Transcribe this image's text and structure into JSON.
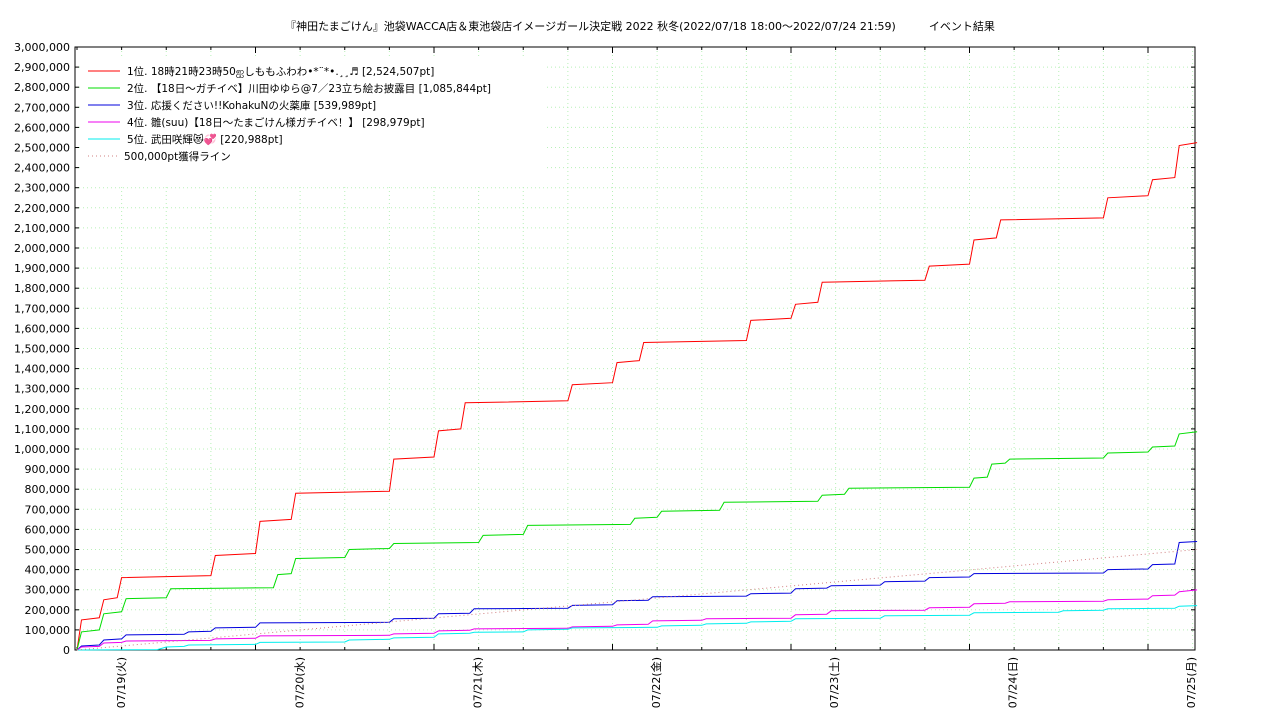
{
  "chart_data": {
    "type": "line",
    "title": "『神田たまごけん』池袋WACCA店＆東池袋店イメージガール決定戦 2022 秋冬(2022/07/18 18:00～2022/07/24 21:59)　　　イベント結果",
    "xlabel": "",
    "ylabel": "",
    "x_range": [
      "07/18 18:00",
      "07/25 00:00"
    ],
    "ylim": [
      0,
      3000000
    ],
    "y_ticks": [
      "0",
      "100,000",
      "200,000",
      "300,000",
      "400,000",
      "500,000",
      "600,000",
      "700,000",
      "800,000",
      "900,000",
      "1,000,000",
      "1,100,000",
      "1,200,000",
      "1,300,000",
      "1,400,000",
      "1,500,000",
      "1,600,000",
      "1,700,000",
      "1,800,000",
      "1,900,000",
      "2,000,000",
      "2,100,000",
      "2,200,000",
      "2,300,000",
      "2,400,000",
      "2,500,000",
      "2,600,000",
      "2,700,000",
      "2,800,000",
      "2,900,000",
      "3,000,000"
    ],
    "x_ticks": [
      "07/19(火)",
      "07/20(水)",
      "07/21(木)",
      "07/22(金)",
      "07/23(土)",
      "07/24(日)",
      "07/25(月)"
    ],
    "grid": true,
    "legend_position": "top-left",
    "series": [
      {
        "name": "1位. 18時21時23時50ஐしももふわわ•*¨*•.¸¸♬ [2,524,507pt]",
        "color": "#ff0000",
        "points": [
          [
            0,
            0
          ],
          [
            0.05,
            150000
          ],
          [
            0.25,
            160000
          ],
          [
            0.3,
            250000
          ],
          [
            0.45,
            260000
          ],
          [
            0.5,
            360000
          ],
          [
            1.5,
            370000
          ],
          [
            1.55,
            470000
          ],
          [
            2.0,
            480000
          ],
          [
            2.05,
            640000
          ],
          [
            2.4,
            650000
          ],
          [
            2.45,
            780000
          ],
          [
            3.5,
            790000
          ],
          [
            3.55,
            950000
          ],
          [
            4.0,
            960000
          ],
          [
            4.05,
            1090000
          ],
          [
            4.3,
            1100000
          ],
          [
            4.35,
            1230000
          ],
          [
            5.5,
            1240000
          ],
          [
            5.55,
            1320000
          ],
          [
            6.0,
            1330000
          ],
          [
            6.05,
            1430000
          ],
          [
            6.3,
            1440000
          ],
          [
            6.35,
            1530000
          ],
          [
            7.5,
            1540000
          ],
          [
            7.55,
            1640000
          ],
          [
            8.0,
            1650000
          ],
          [
            8.05,
            1720000
          ],
          [
            8.3,
            1730000
          ],
          [
            8.35,
            1830000
          ],
          [
            9.5,
            1840000
          ],
          [
            9.55,
            1910000
          ],
          [
            10.0,
            1920000
          ],
          [
            10.05,
            2040000
          ],
          [
            10.3,
            2050000
          ],
          [
            10.35,
            2140000
          ],
          [
            11.5,
            2150000
          ],
          [
            11.55,
            2250000
          ],
          [
            12.0,
            2260000
          ],
          [
            12.05,
            2340000
          ],
          [
            12.3,
            2350000
          ],
          [
            12.35,
            2510000
          ],
          [
            12.55,
            2524507
          ]
        ]
      },
      {
        "name": "2位. 【18日〜ガチイベ】川田ゆゆら@7／23立ち絵お披露目 [1,085,844pt]",
        "color": "#00dd00",
        "points": [
          [
            0,
            0
          ],
          [
            0.05,
            90000
          ],
          [
            0.25,
            100000
          ],
          [
            0.3,
            180000
          ],
          [
            0.5,
            190000
          ],
          [
            0.55,
            255000
          ],
          [
            1.0,
            260000
          ],
          [
            1.05,
            305000
          ],
          [
            2.2,
            310000
          ],
          [
            2.25,
            375000
          ],
          [
            2.4,
            380000
          ],
          [
            2.45,
            455000
          ],
          [
            3.0,
            460000
          ],
          [
            3.05,
            500000
          ],
          [
            3.5,
            505000
          ],
          [
            3.55,
            530000
          ],
          [
            4.5,
            535000
          ],
          [
            4.55,
            570000
          ],
          [
            5.0,
            575000
          ],
          [
            5.05,
            620000
          ],
          [
            6.2,
            625000
          ],
          [
            6.25,
            655000
          ],
          [
            6.5,
            660000
          ],
          [
            6.55,
            690000
          ],
          [
            7.2,
            695000
          ],
          [
            7.25,
            735000
          ],
          [
            8.3,
            740000
          ],
          [
            8.35,
            770000
          ],
          [
            8.6,
            775000
          ],
          [
            8.65,
            805000
          ],
          [
            10.0,
            810000
          ],
          [
            10.05,
            855000
          ],
          [
            10.2,
            860000
          ],
          [
            10.25,
            925000
          ],
          [
            10.4,
            930000
          ],
          [
            10.45,
            950000
          ],
          [
            11.5,
            955000
          ],
          [
            11.55,
            980000
          ],
          [
            12.0,
            985000
          ],
          [
            12.05,
            1010000
          ],
          [
            12.3,
            1015000
          ],
          [
            12.35,
            1075000
          ],
          [
            12.55,
            1085844
          ]
        ]
      },
      {
        "name": "3位. 応援ください!!KohakuNの火薬庫 [539,989pt]",
        "color": "#0000dd",
        "points": [
          [
            0,
            0
          ],
          [
            0.05,
            20000
          ],
          [
            0.25,
            25000
          ],
          [
            0.3,
            50000
          ],
          [
            0.5,
            55000
          ],
          [
            0.55,
            75000
          ],
          [
            1.2,
            78000
          ],
          [
            1.25,
            90000
          ],
          [
            1.5,
            93000
          ],
          [
            1.55,
            110000
          ],
          [
            2.0,
            113000
          ],
          [
            2.05,
            135000
          ],
          [
            3.5,
            138000
          ],
          [
            3.55,
            155000
          ],
          [
            4.0,
            158000
          ],
          [
            4.05,
            180000
          ],
          [
            4.4,
            183000
          ],
          [
            4.45,
            205000
          ],
          [
            5.5,
            208000
          ],
          [
            5.55,
            222000
          ],
          [
            6.0,
            225000
          ],
          [
            6.05,
            245000
          ],
          [
            6.4,
            248000
          ],
          [
            6.45,
            265000
          ],
          [
            7.5,
            268000
          ],
          [
            7.55,
            280000
          ],
          [
            8.0,
            283000
          ],
          [
            8.05,
            305000
          ],
          [
            8.4,
            308000
          ],
          [
            8.45,
            320000
          ],
          [
            9.0,
            323000
          ],
          [
            9.05,
            340000
          ],
          [
            9.5,
            343000
          ],
          [
            9.55,
            360000
          ],
          [
            10.0,
            363000
          ],
          [
            10.05,
            380000
          ],
          [
            11.5,
            383000
          ],
          [
            11.55,
            400000
          ],
          [
            12.0,
            403000
          ],
          [
            12.05,
            425000
          ],
          [
            12.3,
            428000
          ],
          [
            12.35,
            535000
          ],
          [
            12.55,
            539989
          ]
        ]
      },
      {
        "name": "4位. 雛(suu)【18日〜たまごけん様ガチイベ！】 [298,979pt]",
        "color": "#ee00ee",
        "points": [
          [
            0,
            0
          ],
          [
            0.05,
            15000
          ],
          [
            0.25,
            18000
          ],
          [
            0.3,
            35000
          ],
          [
            0.5,
            38000
          ],
          [
            0.55,
            45000
          ],
          [
            1.5,
            48000
          ],
          [
            1.55,
            55000
          ],
          [
            2.0,
            58000
          ],
          [
            2.05,
            70000
          ],
          [
            3.5,
            73000
          ],
          [
            3.55,
            80000
          ],
          [
            4.0,
            83000
          ],
          [
            4.05,
            95000
          ],
          [
            4.4,
            98000
          ],
          [
            4.45,
            105000
          ],
          [
            5.5,
            108000
          ],
          [
            5.55,
            115000
          ],
          [
            6.0,
            118000
          ],
          [
            6.05,
            125000
          ],
          [
            6.4,
            128000
          ],
          [
            6.45,
            145000
          ],
          [
            7.0,
            148000
          ],
          [
            7.05,
            155000
          ],
          [
            8.0,
            158000
          ],
          [
            8.05,
            175000
          ],
          [
            8.4,
            178000
          ],
          [
            8.45,
            195000
          ],
          [
            9.5,
            198000
          ],
          [
            9.55,
            210000
          ],
          [
            10.0,
            213000
          ],
          [
            10.05,
            230000
          ],
          [
            10.4,
            233000
          ],
          [
            10.45,
            240000
          ],
          [
            11.5,
            243000
          ],
          [
            11.55,
            250000
          ],
          [
            12.0,
            253000
          ],
          [
            12.05,
            270000
          ],
          [
            12.3,
            273000
          ],
          [
            12.35,
            290000
          ],
          [
            12.55,
            298979
          ]
        ]
      },
      {
        "name": "5位. 武田咲輝😻💞 [220,988pt]",
        "color": "#00eeee",
        "points": [
          [
            0,
            0
          ],
          [
            0.9,
            2000
          ],
          [
            1.0,
            15000
          ],
          [
            1.2,
            18000
          ],
          [
            1.25,
            25000
          ],
          [
            2.0,
            28000
          ],
          [
            2.05,
            38000
          ],
          [
            3.0,
            40000
          ],
          [
            3.05,
            50000
          ],
          [
            3.5,
            53000
          ],
          [
            3.55,
            60000
          ],
          [
            4.0,
            63000
          ],
          [
            4.05,
            80000
          ],
          [
            4.4,
            83000
          ],
          [
            4.45,
            88000
          ],
          [
            5.0,
            90000
          ],
          [
            5.05,
            100000
          ],
          [
            5.5,
            103000
          ],
          [
            5.55,
            110000
          ],
          [
            6.5,
            113000
          ],
          [
            6.55,
            120000
          ],
          [
            7.0,
            123000
          ],
          [
            7.05,
            130000
          ],
          [
            7.5,
            133000
          ],
          [
            7.55,
            140000
          ],
          [
            8.0,
            143000
          ],
          [
            8.05,
            155000
          ],
          [
            9.0,
            158000
          ],
          [
            9.05,
            170000
          ],
          [
            10.0,
            173000
          ],
          [
            10.05,
            185000
          ],
          [
            11.0,
            188000
          ],
          [
            11.05,
            195000
          ],
          [
            11.5,
            198000
          ],
          [
            11.55,
            205000
          ],
          [
            12.3,
            208000
          ],
          [
            12.35,
            218000
          ],
          [
            12.55,
            220988
          ]
        ]
      },
      {
        "name": "500,000pt獲得ライン",
        "color": "#d08080",
        "points": [
          [
            0,
            0
          ],
          [
            12.55,
            500000
          ]
        ]
      }
    ]
  }
}
